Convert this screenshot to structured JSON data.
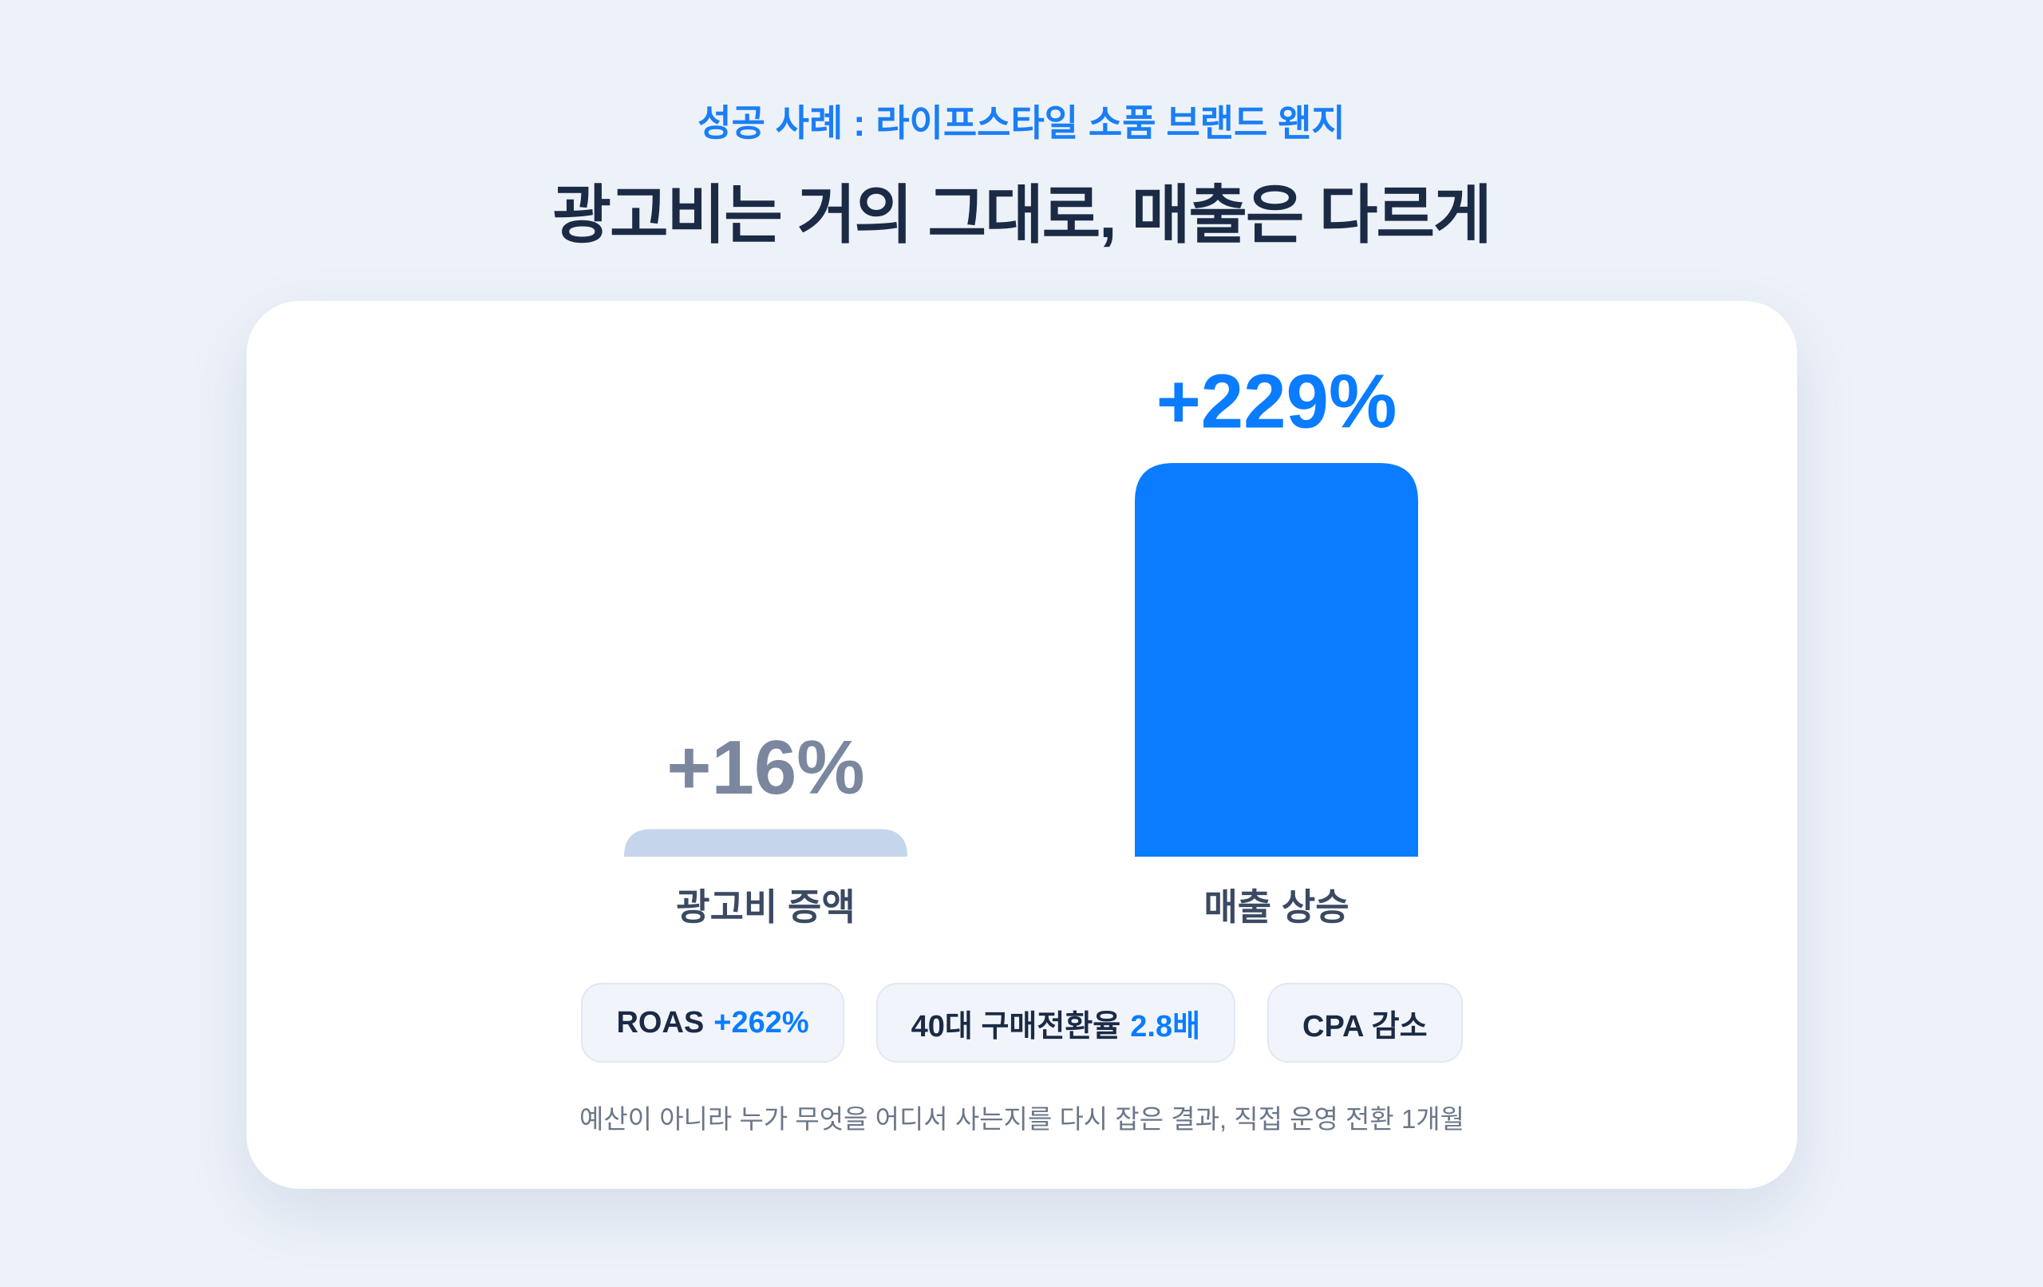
{
  "subtitle": "성공 사례 : 라이프스타일 소품 브랜드 왠지",
  "title": "광고비는 거의 그대로, 매출은 다르게",
  "chart_data": {
    "type": "bar",
    "categories": [
      "광고비 증액",
      "매출 상승"
    ],
    "values": [
      16,
      229
    ],
    "value_labels": [
      "+16%",
      "+229%"
    ],
    "colors": [
      "#c5d6ec",
      "#0a7cff"
    ],
    "label_colors": [
      "#7a879e",
      "#0a7cff"
    ]
  },
  "badges": [
    {
      "label": "ROAS",
      "highlight": "+262%"
    },
    {
      "label": "40대 구매전환율",
      "highlight": "2.8배"
    },
    {
      "label": "CPA 감소"
    }
  ],
  "footnote": "예산이 아니라 누가 무엇을 어디서 사는지를 다시 잡은 결과, 직접 운영 전환 1개월"
}
